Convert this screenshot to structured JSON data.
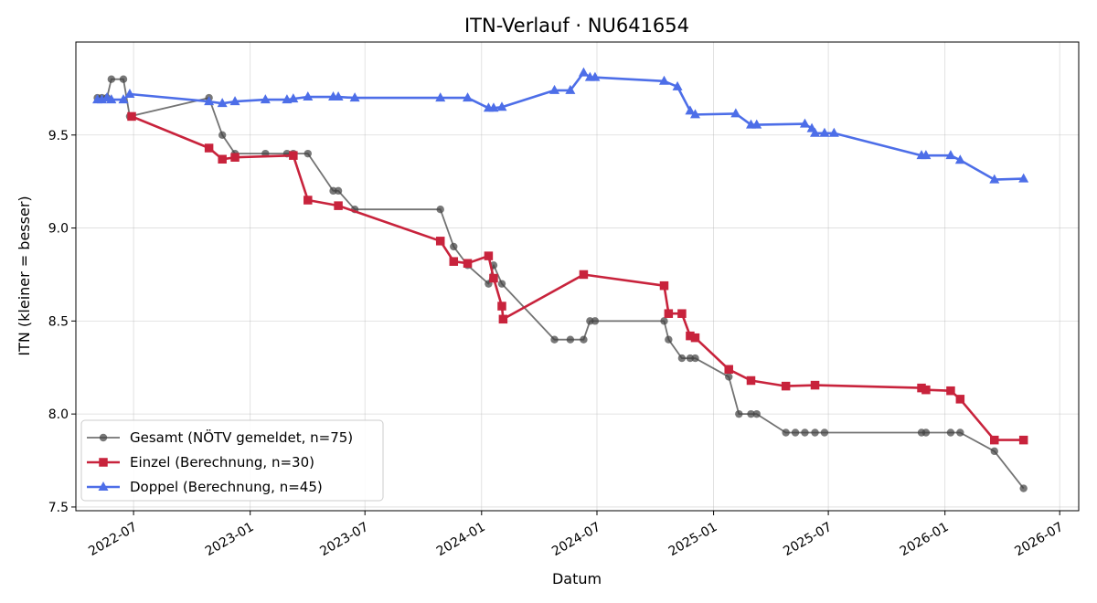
{
  "chart_data": {
    "type": "line",
    "title": "ITN-Verlauf · NU641654",
    "xlabel": "Datum",
    "ylabel": "ITN  (kleiner = besser)",
    "ylim": [
      7.48,
      10.0
    ],
    "xlim": [
      "2022-04-01",
      "2026-07-31"
    ],
    "y_ticks": [
      "7.5",
      "8.0",
      "8.5",
      "9.0",
      "9.5"
    ],
    "x_ticks": [
      "2022-07",
      "2023-01",
      "2023-07",
      "2024-01",
      "2024-07",
      "2025-01",
      "2025-07",
      "2026-01",
      "2026-07"
    ],
    "grid": true,
    "legend_position": "lower-left",
    "series": [
      {
        "name": "Gesamt (NÖTV gemeldet, n=75)",
        "color": "#444444",
        "marker": "circle",
        "points": [
          [
            "2022-05-05",
            9.7
          ],
          [
            "2022-05-12",
            9.7
          ],
          [
            "2022-05-20",
            9.7
          ],
          [
            "2022-05-27",
            9.8
          ],
          [
            "2022-06-15",
            9.8
          ],
          [
            "2022-06-25",
            9.6
          ],
          [
            "2022-10-28",
            9.7
          ],
          [
            "2022-11-18",
            9.5
          ],
          [
            "2022-12-08",
            9.4
          ],
          [
            "2023-01-25",
            9.4
          ],
          [
            "2023-02-28",
            9.4
          ],
          [
            "2023-03-10",
            9.4
          ],
          [
            "2023-04-02",
            9.4
          ],
          [
            "2023-05-12",
            9.2
          ],
          [
            "2023-05-20",
            9.2
          ],
          [
            "2023-06-15",
            9.1
          ],
          [
            "2023-10-28",
            9.1
          ],
          [
            "2023-11-18",
            8.9
          ],
          [
            "2023-12-10",
            8.8
          ],
          [
            "2024-01-12",
            8.7
          ],
          [
            "2024-01-20",
            8.8
          ],
          [
            "2024-02-02",
            8.7
          ],
          [
            "2024-04-25",
            8.4
          ],
          [
            "2024-05-20",
            8.4
          ],
          [
            "2024-06-10",
            8.4
          ],
          [
            "2024-06-20",
            8.5
          ],
          [
            "2024-06-28",
            8.5
          ],
          [
            "2024-10-15",
            8.5
          ],
          [
            "2024-10-22",
            8.4
          ],
          [
            "2024-11-12",
            8.3
          ],
          [
            "2024-11-25",
            8.3
          ],
          [
            "2024-12-03",
            8.3
          ],
          [
            "2025-01-25",
            8.2
          ],
          [
            "2025-02-10",
            8.0
          ],
          [
            "2025-03-01",
            8.0
          ],
          [
            "2025-03-10",
            8.0
          ],
          [
            "2025-04-25",
            7.9
          ],
          [
            "2025-05-10",
            7.9
          ],
          [
            "2025-05-25",
            7.9
          ],
          [
            "2025-06-10",
            7.9
          ],
          [
            "2025-06-25",
            7.9
          ],
          [
            "2025-11-25",
            7.9
          ],
          [
            "2025-12-02",
            7.9
          ],
          [
            "2026-01-10",
            7.9
          ],
          [
            "2026-01-25",
            7.9
          ],
          [
            "2026-03-20",
            7.8
          ],
          [
            "2026-05-05",
            7.6
          ]
        ]
      },
      {
        "name": "Einzel (Berechnung, n=30)",
        "color": "#c8233c",
        "marker": "square",
        "points": [
          [
            "2022-06-28",
            9.6
          ],
          [
            "2022-10-28",
            9.43
          ],
          [
            "2022-11-18",
            9.37
          ],
          [
            "2022-12-08",
            9.38
          ],
          [
            "2023-03-10",
            9.39
          ],
          [
            "2023-04-02",
            9.15
          ],
          [
            "2023-05-20",
            9.12
          ],
          [
            "2023-10-28",
            8.93
          ],
          [
            "2023-11-18",
            8.82
          ],
          [
            "2023-12-10",
            8.81
          ],
          [
            "2024-01-12",
            8.85
          ],
          [
            "2024-01-20",
            8.73
          ],
          [
            "2024-02-02",
            8.58
          ],
          [
            "2024-02-04",
            8.51
          ],
          [
            "2024-06-10",
            8.75
          ],
          [
            "2024-10-15",
            8.69
          ],
          [
            "2024-10-22",
            8.54
          ],
          [
            "2024-11-12",
            8.54
          ],
          [
            "2024-11-25",
            8.42
          ],
          [
            "2024-12-03",
            8.41
          ],
          [
            "2025-01-25",
            8.24
          ],
          [
            "2025-03-01",
            8.18
          ],
          [
            "2025-04-25",
            8.15
          ],
          [
            "2025-06-10",
            8.155
          ],
          [
            "2025-11-25",
            8.14
          ],
          [
            "2025-12-02",
            8.13
          ],
          [
            "2026-01-10",
            8.125
          ],
          [
            "2026-01-25",
            8.08
          ],
          [
            "2026-03-20",
            7.86
          ],
          [
            "2026-05-05",
            7.86
          ]
        ]
      },
      {
        "name": "Doppel (Berechnung, n=45)",
        "color": "#4d6ee8",
        "marker": "triangle",
        "points": [
          [
            "2022-05-05",
            9.69
          ],
          [
            "2022-05-12",
            9.69
          ],
          [
            "2022-05-20",
            9.7
          ],
          [
            "2022-05-27",
            9.69
          ],
          [
            "2022-06-15",
            9.69
          ],
          [
            "2022-06-25",
            9.72
          ],
          [
            "2022-10-28",
            9.68
          ],
          [
            "2022-11-18",
            9.67
          ],
          [
            "2022-12-08",
            9.68
          ],
          [
            "2023-01-25",
            9.69
          ],
          [
            "2023-02-28",
            9.69
          ],
          [
            "2023-03-10",
            9.695
          ],
          [
            "2023-04-02",
            9.705
          ],
          [
            "2023-05-12",
            9.705
          ],
          [
            "2023-05-20",
            9.705
          ],
          [
            "2023-06-15",
            9.7
          ],
          [
            "2023-10-28",
            9.7
          ],
          [
            "2023-12-10",
            9.7
          ],
          [
            "2024-01-12",
            9.645
          ],
          [
            "2024-01-20",
            9.645
          ],
          [
            "2024-02-02",
            9.65
          ],
          [
            "2024-04-25",
            9.74
          ],
          [
            "2024-05-20",
            9.74
          ],
          [
            "2024-06-10",
            9.835
          ],
          [
            "2024-06-20",
            9.81
          ],
          [
            "2024-06-28",
            9.81
          ],
          [
            "2024-10-15",
            9.79
          ],
          [
            "2024-11-05",
            9.76
          ],
          [
            "2024-11-25",
            9.63
          ],
          [
            "2024-12-03",
            9.61
          ],
          [
            "2025-02-05",
            9.615
          ],
          [
            "2025-03-01",
            9.555
          ],
          [
            "2025-03-10",
            9.555
          ],
          [
            "2025-05-25",
            9.56
          ],
          [
            "2025-06-05",
            9.535
          ],
          [
            "2025-06-10",
            9.51
          ],
          [
            "2025-06-25",
            9.51
          ],
          [
            "2025-07-10",
            9.51
          ],
          [
            "2025-11-25",
            9.39
          ],
          [
            "2025-12-02",
            9.39
          ],
          [
            "2026-01-10",
            9.39
          ],
          [
            "2026-01-25",
            9.365
          ],
          [
            "2026-03-20",
            9.26
          ],
          [
            "2026-05-05",
            9.265
          ]
        ]
      }
    ]
  }
}
